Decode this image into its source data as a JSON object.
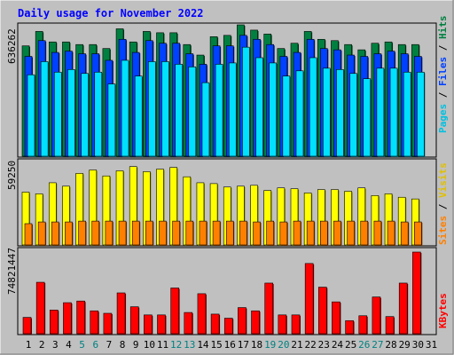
{
  "chart_data": [
    {
      "type": "bar",
      "title": "Daily usage for November 2022",
      "max_label": "636262",
      "series": [
        {
          "name": "Hits",
          "color": "#008040",
          "values": [
            0.84,
            0.95,
            0.87,
            0.87,
            0.85,
            0.85,
            0.82,
            0.97,
            0.87,
            0.95,
            0.94,
            0.94,
            0.85,
            0.77,
            0.91,
            0.92,
            1.0,
            0.96,
            0.93,
            0.82,
            0.86,
            0.95,
            0.89,
            0.88,
            0.85,
            0.81,
            0.86,
            0.87,
            0.85,
            0.85
          ]
        },
        {
          "name": "Files",
          "color": "#0040ff",
          "values": [
            0.76,
            0.88,
            0.79,
            0.8,
            0.78,
            0.78,
            0.73,
            0.89,
            0.79,
            0.88,
            0.86,
            0.86,
            0.78,
            0.7,
            0.84,
            0.84,
            0.92,
            0.89,
            0.85,
            0.76,
            0.79,
            0.89,
            0.82,
            0.81,
            0.77,
            0.76,
            0.78,
            0.8,
            0.78,
            0.76
          ]
        },
        {
          "name": "Pages",
          "color": "#00e0ff",
          "values": [
            0.62,
            0.72,
            0.64,
            0.66,
            0.63,
            0.64,
            0.55,
            0.73,
            0.61,
            0.72,
            0.72,
            0.7,
            0.68,
            0.56,
            0.7,
            0.71,
            0.83,
            0.75,
            0.71,
            0.61,
            0.65,
            0.75,
            0.67,
            0.66,
            0.63,
            0.59,
            0.67,
            0.67,
            0.64,
            0.64
          ]
        }
      ]
    },
    {
      "type": "bar",
      "max_label": "59250",
      "series": [
        {
          "name": "Visits",
          "color": "#ffff00",
          "values": [
            0.62,
            0.6,
            0.73,
            0.69,
            0.84,
            0.88,
            0.81,
            0.87,
            0.92,
            0.86,
            0.89,
            0.91,
            0.8,
            0.73,
            0.72,
            0.68,
            0.69,
            0.7,
            0.64,
            0.67,
            0.66,
            0.61,
            0.65,
            0.65,
            0.63,
            0.67,
            0.58,
            0.6,
            0.56,
            0.54
          ]
        },
        {
          "name": "Sites",
          "color": "#ff8000",
          "values": [
            0.25,
            0.27,
            0.27,
            0.27,
            0.28,
            0.28,
            0.28,
            0.28,
            0.28,
            0.28,
            0.28,
            0.28,
            0.28,
            0.28,
            0.28,
            0.28,
            0.28,
            0.27,
            0.28,
            0.27,
            0.28,
            0.28,
            0.28,
            0.28,
            0.28,
            0.28,
            0.28,
            0.28,
            0.27,
            0.27
          ]
        }
      ]
    },
    {
      "type": "bar",
      "max_label": "74821447",
      "series": [
        {
          "name": "KBytes",
          "color": "#ff0000",
          "values": [
            0.2,
            0.63,
            0.29,
            0.38,
            0.4,
            0.28,
            0.25,
            0.5,
            0.33,
            0.23,
            0.23,
            0.56,
            0.26,
            0.49,
            0.24,
            0.19,
            0.32,
            0.28,
            0.62,
            0.23,
            0.23,
            0.86,
            0.57,
            0.39,
            0.16,
            0.22,
            0.45,
            0.21,
            0.62,
            1.0
          ]
        }
      ]
    }
  ],
  "x_labels": [
    "1",
    "2",
    "3",
    "4",
    "5",
    "6",
    "7",
    "8",
    "9",
    "10",
    "11",
    "12",
    "13",
    "14",
    "15",
    "16",
    "17",
    "18",
    "19",
    "20",
    "21",
    "22",
    "23",
    "24",
    "25",
    "26",
    "27",
    "28",
    "29",
    "30",
    "31"
  ],
  "weekend_days": [
    5,
    6,
    12,
    13,
    19,
    20,
    26,
    27
  ],
  "colors": {
    "weekday_label": "#000000",
    "weekend_label": "#008080",
    "title": "#0000ff"
  }
}
